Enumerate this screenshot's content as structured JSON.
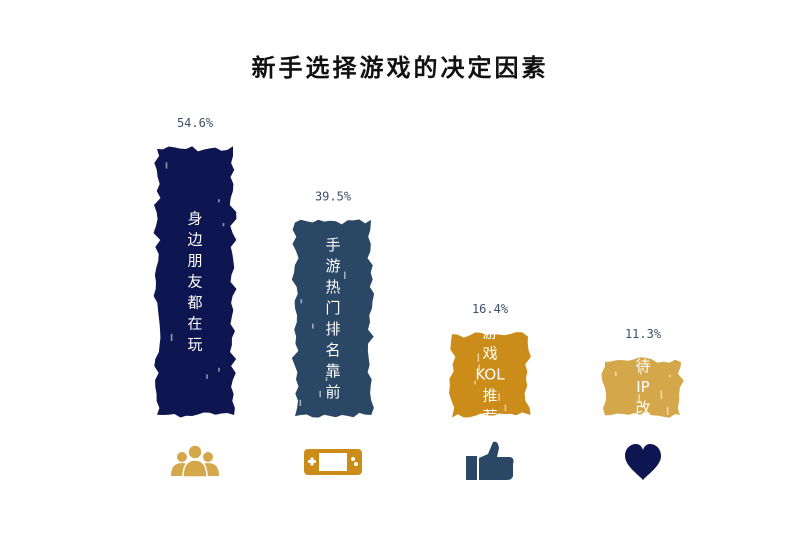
{
  "chart_data": {
    "type": "bar",
    "title": "新手选择游戏的决定因素",
    "categories": [
      "身边朋友都在玩",
      "手游热门排名靠前",
      "游戏KOL推荐",
      "期待IP改编"
    ],
    "values": [
      54.6,
      39.5,
      16.4,
      11.3
    ],
    "value_labels": [
      "54.6%",
      "39.5%",
      "16.4%",
      "11.3%"
    ],
    "label_lines": [
      [
        "身",
        "边",
        "朋",
        "友",
        "都",
        "在",
        "玩"
      ],
      [
        "手",
        "游",
        "热",
        "门",
        "排",
        "名",
        "靠",
        "前"
      ],
      [
        "游",
        "戏",
        "KOL",
        "推",
        "荐"
      ],
      [
        "期",
        "待",
        "IP",
        "改",
        "编"
      ]
    ],
    "colors": [
      "#0d1650",
      "#2b4766",
      "#cc8c1a",
      "#d4a84a"
    ],
    "icons": [
      "people-icon",
      "gamepad-icon",
      "thumbs-up-icon",
      "heart-icon"
    ],
    "icon_colors": [
      "#d4a84a",
      "#cc8c1a",
      "#2b4766",
      "#0d1650"
    ],
    "ylim": [
      0,
      60
    ],
    "grid": false,
    "legend": "none",
    "xlabel": "",
    "ylabel": ""
  }
}
